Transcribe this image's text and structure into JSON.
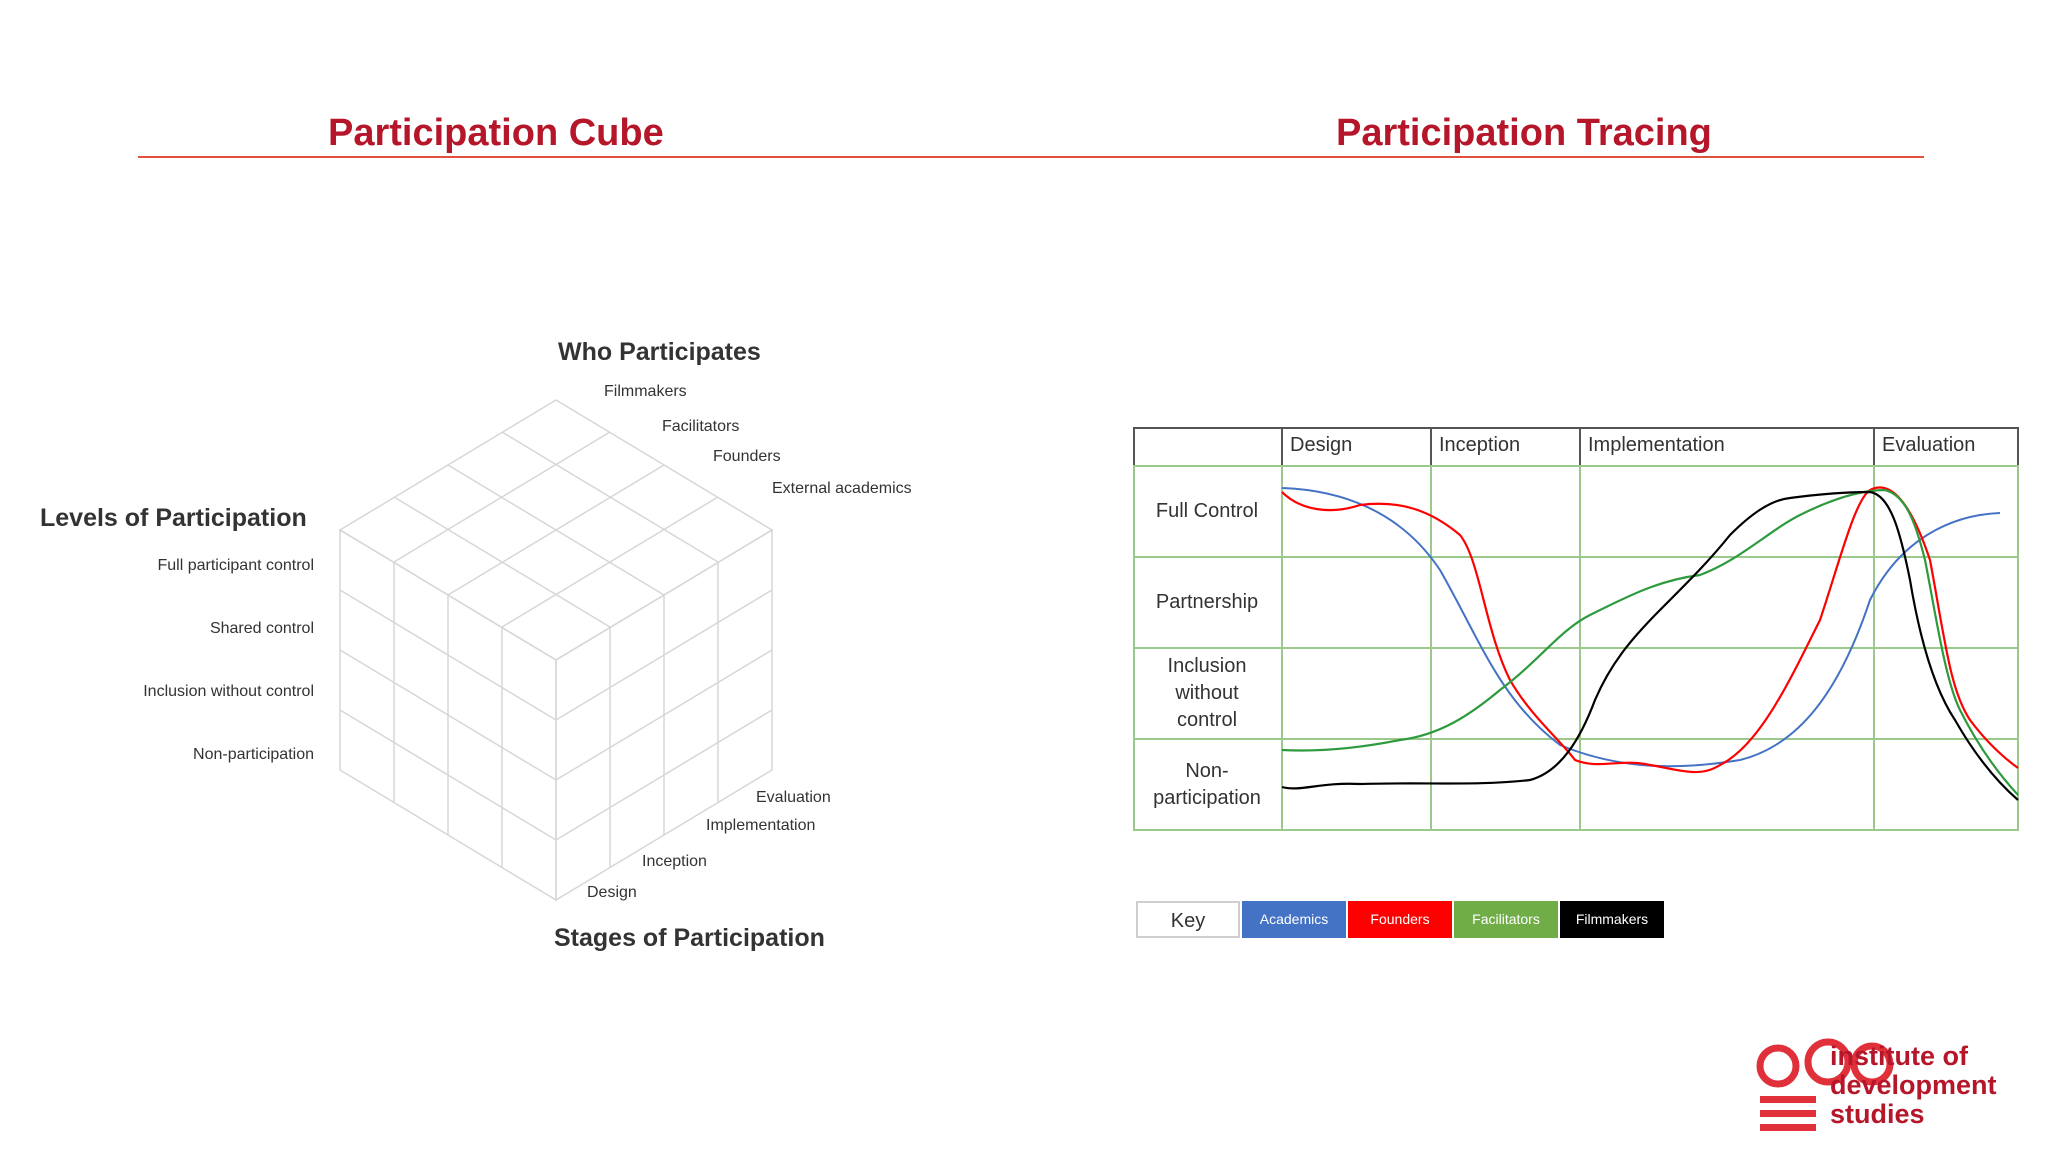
{
  "titles": {
    "left": "Participation Cube",
    "right": "Participation Tracing"
  },
  "cube": {
    "who_heading": "Who Participates",
    "who": [
      "Filmmakers",
      "Facilitators",
      "Founders",
      "External academics"
    ],
    "levels_heading": "Levels of Participation",
    "levels": [
      "Full participant control",
      "Shared control",
      "Inclusion without control",
      "Non-participation"
    ],
    "stages_heading": "Stages of Participation",
    "stages": [
      "Evaluation",
      "Implementation",
      "Inception",
      "Design"
    ]
  },
  "tracing": {
    "stages": [
      "Design",
      "Inception",
      "Implementation",
      "Evaluation"
    ],
    "levels": [
      "Full Control",
      "Partnership",
      "Inclusion without control",
      "Non-participation"
    ],
    "key_label": "Key",
    "series": [
      {
        "name": "Academics",
        "color": "#4472c4"
      },
      {
        "name": "Founders",
        "color": "#ff0000"
      },
      {
        "name": "Facilitators",
        "color": "#70ad47"
      },
      {
        "name": "Filmmakers",
        "color": "#000000"
      }
    ]
  },
  "logo": {
    "line1": "institute of",
    "line2": "development",
    "line3": "studies",
    "mark_color": "#e0303a"
  }
}
